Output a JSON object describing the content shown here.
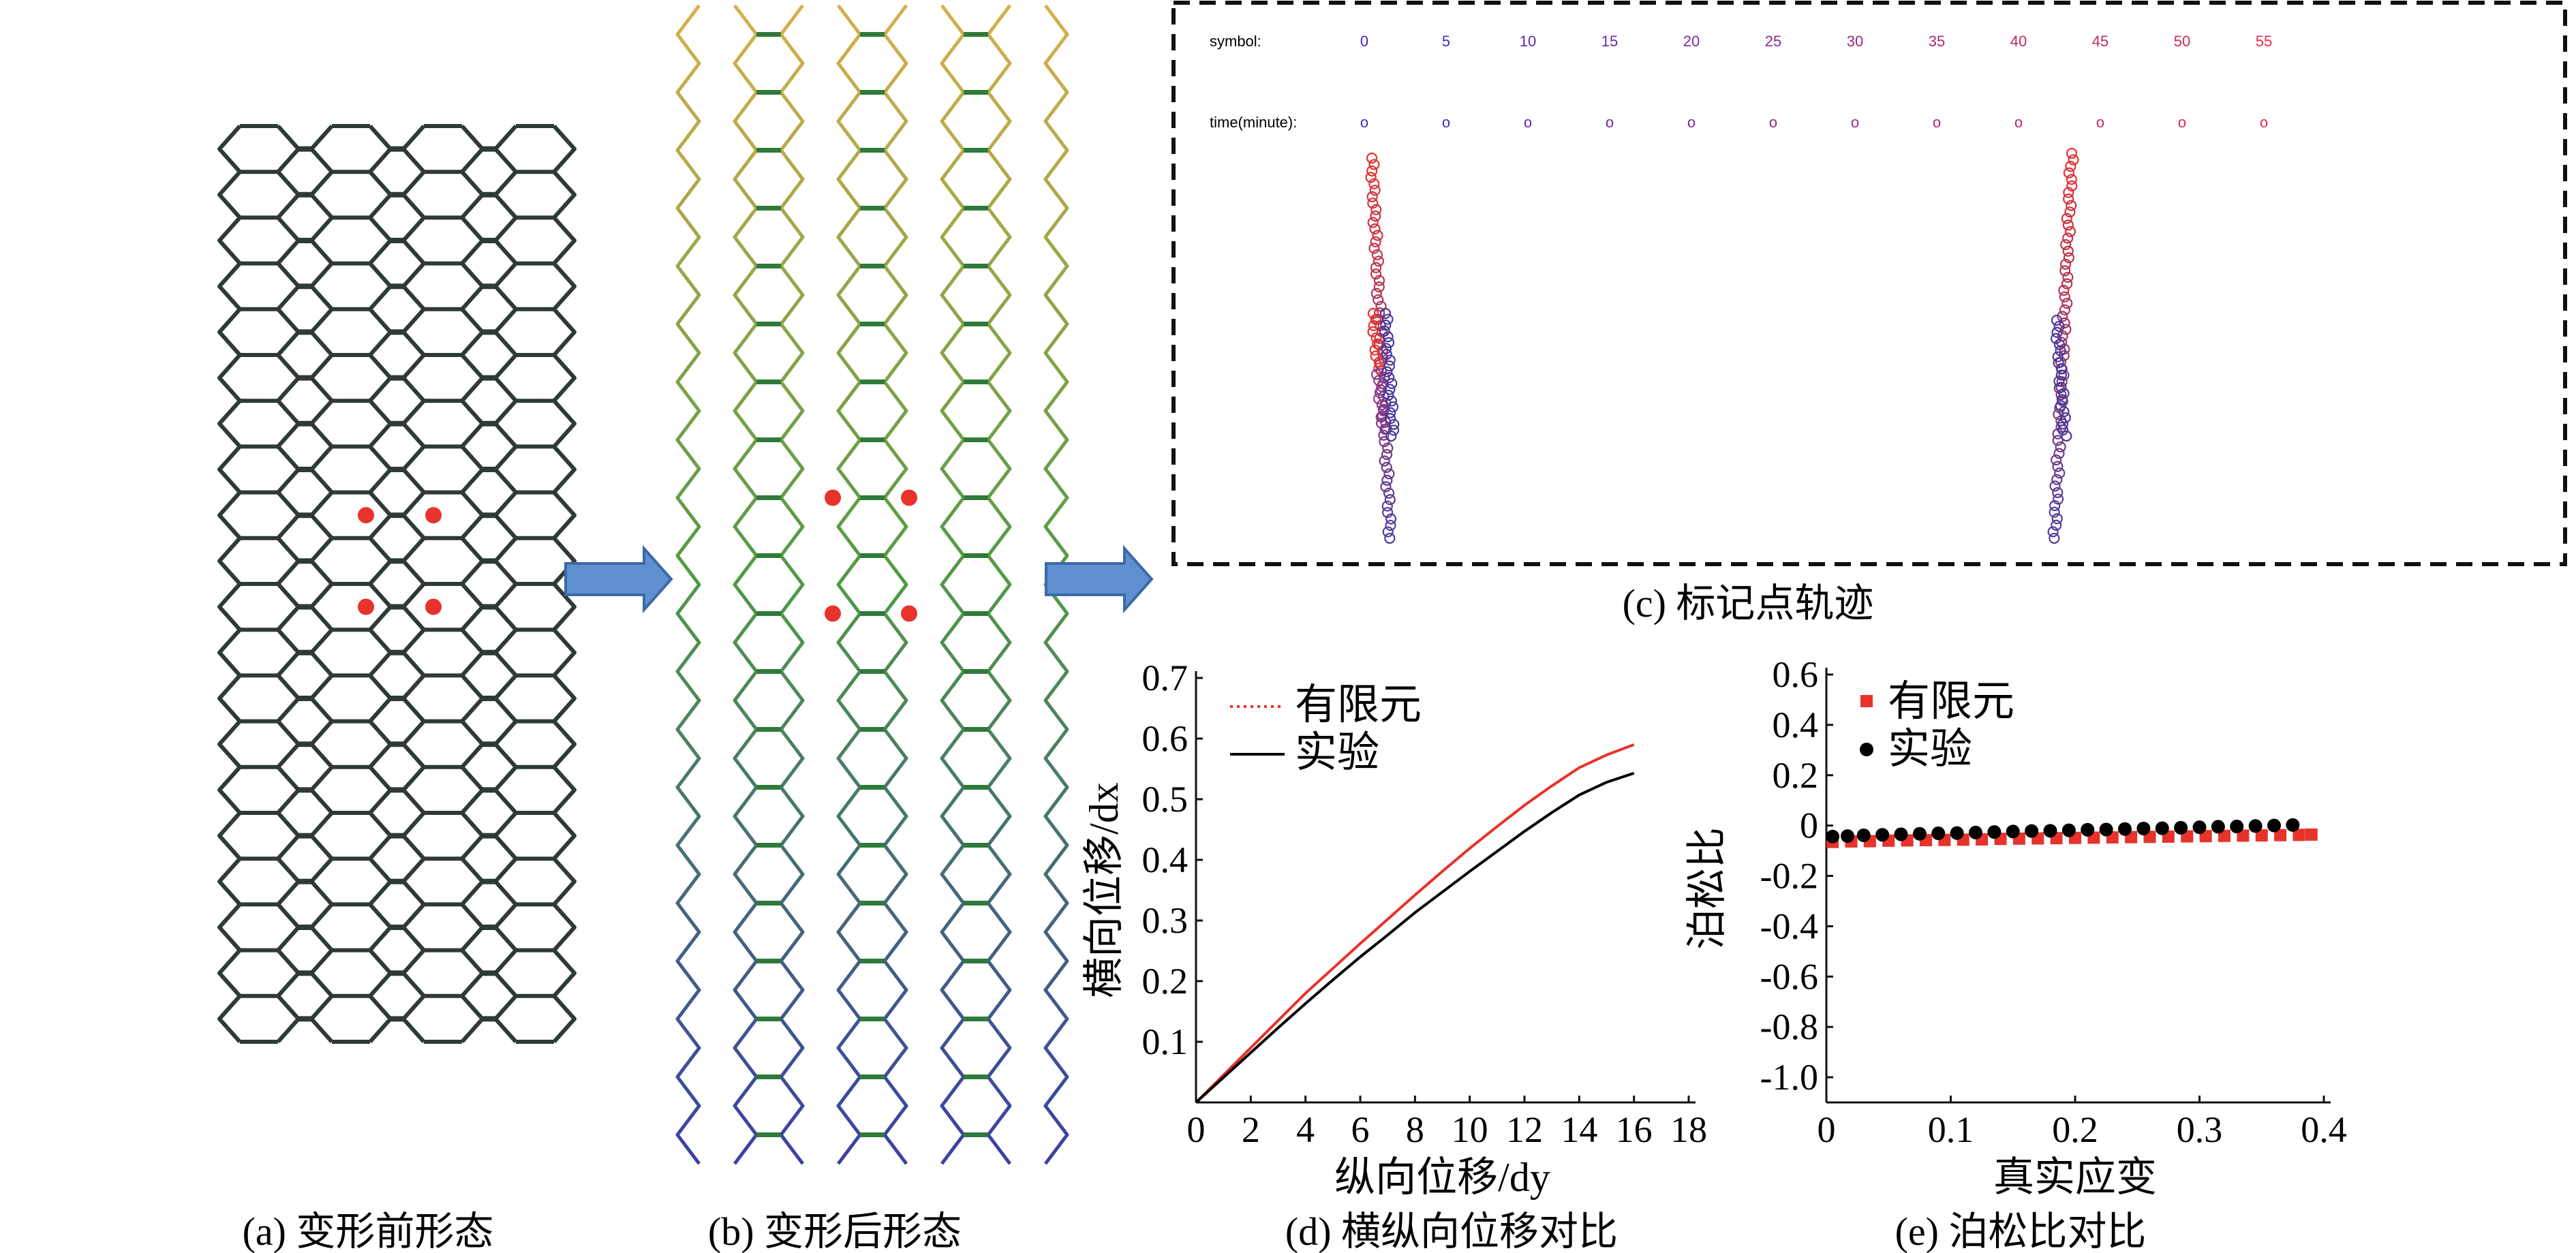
{
  "panels": {
    "a": {
      "caption": "(a) 变形前形态"
    },
    "b": {
      "caption": "(b) 变形后形态"
    },
    "c": {
      "caption": "(c) 标记点轨迹",
      "symbol_label": "symbol:",
      "time_label": "time(minute):",
      "symbols": [
        "0",
        "5",
        "10",
        "15",
        "20",
        "25",
        "30",
        "35",
        "40",
        "45",
        "50",
        "55"
      ],
      "marker": "o"
    },
    "d": {
      "caption": "(d) 横纵向位移对比"
    },
    "e": {
      "caption": "(e) 泊松比对比"
    }
  },
  "colors": {
    "structure_dark": "#2e3a34",
    "marker_red": "#e8322c",
    "arrow_fill": "#5f8fcf",
    "arrow_stroke": "#3b6aa8",
    "fem_red": "#e8322c",
    "experiment_black": "#000000",
    "trajectory_blue": "#4b3a9c",
    "trajectory_red": "#e8322c"
  },
  "icons": {
    "right_arrow": "block-arrow-right-icon"
  },
  "chart_data": [
    {
      "id": "d",
      "type": "line",
      "xlabel": "纵向位移/dy",
      "ylabel": "横向位移/dx",
      "xlim": [
        0,
        18
      ],
      "ylim": [
        0,
        0.7
      ],
      "xticks": [
        "0",
        "2",
        "4",
        "6",
        "8",
        "10",
        "12",
        "14",
        "16",
        "18"
      ],
      "yticks": [
        "0.1",
        "0.2",
        "0.3",
        "0.4",
        "0.5",
        "0.6",
        "0.7"
      ],
      "legend_position": "top-left",
      "series": [
        {
          "name": "有限元",
          "style": "dotted",
          "color": "#e8322c",
          "x": [
            0,
            1,
            2,
            3,
            4,
            5,
            6,
            7,
            8,
            9,
            10,
            11,
            12,
            13,
            14,
            15,
            16
          ],
          "y": [
            0,
            0.045,
            0.09,
            0.135,
            0.18,
            0.221,
            0.262,
            0.302,
            0.342,
            0.381,
            0.419,
            0.455,
            0.49,
            0.522,
            0.552,
            0.573,
            0.59
          ]
        },
        {
          "name": "实验",
          "style": "solid",
          "color": "#000000",
          "x": [
            0,
            1,
            2,
            3,
            4,
            5,
            6,
            7,
            8,
            9,
            10,
            11,
            12,
            13,
            14,
            15,
            16
          ],
          "y": [
            0,
            0.041,
            0.082,
            0.123,
            0.163,
            0.202,
            0.24,
            0.276,
            0.313,
            0.347,
            0.381,
            0.414,
            0.447,
            0.478,
            0.507,
            0.528,
            0.543
          ]
        }
      ]
    },
    {
      "id": "e",
      "type": "scatter",
      "xlabel": "真实应变",
      "ylabel": "泊松比",
      "xlim": [
        0,
        0.4
      ],
      "ylim": [
        -1.1,
        0.6
      ],
      "xticks": [
        "0",
        "0.1",
        "0.2",
        "0.3",
        "0.4"
      ],
      "yticks": [
        "0.6",
        "0.4",
        "0.2",
        "0",
        "-0.2",
        "-0.4",
        "-0.6",
        "-0.8",
        "-1.0"
      ],
      "legend_position": "top-left",
      "series": [
        {
          "name": "有限元",
          "marker": "square",
          "color": "#e8322c",
          "x": [
            0.005,
            0.02,
            0.035,
            0.05,
            0.065,
            0.08,
            0.095,
            0.11,
            0.125,
            0.14,
            0.155,
            0.17,
            0.185,
            0.2,
            0.215,
            0.23,
            0.245,
            0.26,
            0.275,
            0.29,
            0.305,
            0.32,
            0.335,
            0.35,
            0.365,
            0.38,
            0.39
          ],
          "y": [
            -0.065,
            -0.063,
            -0.062,
            -0.06,
            -0.059,
            -0.058,
            -0.057,
            -0.056,
            -0.055,
            -0.053,
            -0.052,
            -0.051,
            -0.05,
            -0.049,
            -0.048,
            -0.047,
            -0.046,
            -0.045,
            -0.044,
            -0.043,
            -0.042,
            -0.041,
            -0.04,
            -0.039,
            -0.038,
            -0.037,
            -0.036
          ]
        },
        {
          "name": "实验",
          "marker": "circle",
          "color": "#000000",
          "x": [
            0.005,
            0.017,
            0.03,
            0.045,
            0.06,
            0.075,
            0.09,
            0.105,
            0.12,
            0.135,
            0.15,
            0.165,
            0.18,
            0.195,
            0.21,
            0.225,
            0.24,
            0.255,
            0.27,
            0.285,
            0.3,
            0.315,
            0.33,
            0.345,
            0.36,
            0.375
          ],
          "y": [
            -0.06,
            -0.058,
            -0.055,
            -0.053,
            -0.051,
            -0.049,
            -0.047,
            -0.046,
            -0.044,
            -0.042,
            -0.04,
            -0.038,
            -0.037,
            -0.035,
            -0.033,
            -0.032,
            -0.03,
            -0.028,
            -0.027,
            -0.025,
            -0.023,
            -0.021,
            -0.02,
            -0.018,
            -0.016,
            -0.014
          ]
        }
      ]
    }
  ]
}
